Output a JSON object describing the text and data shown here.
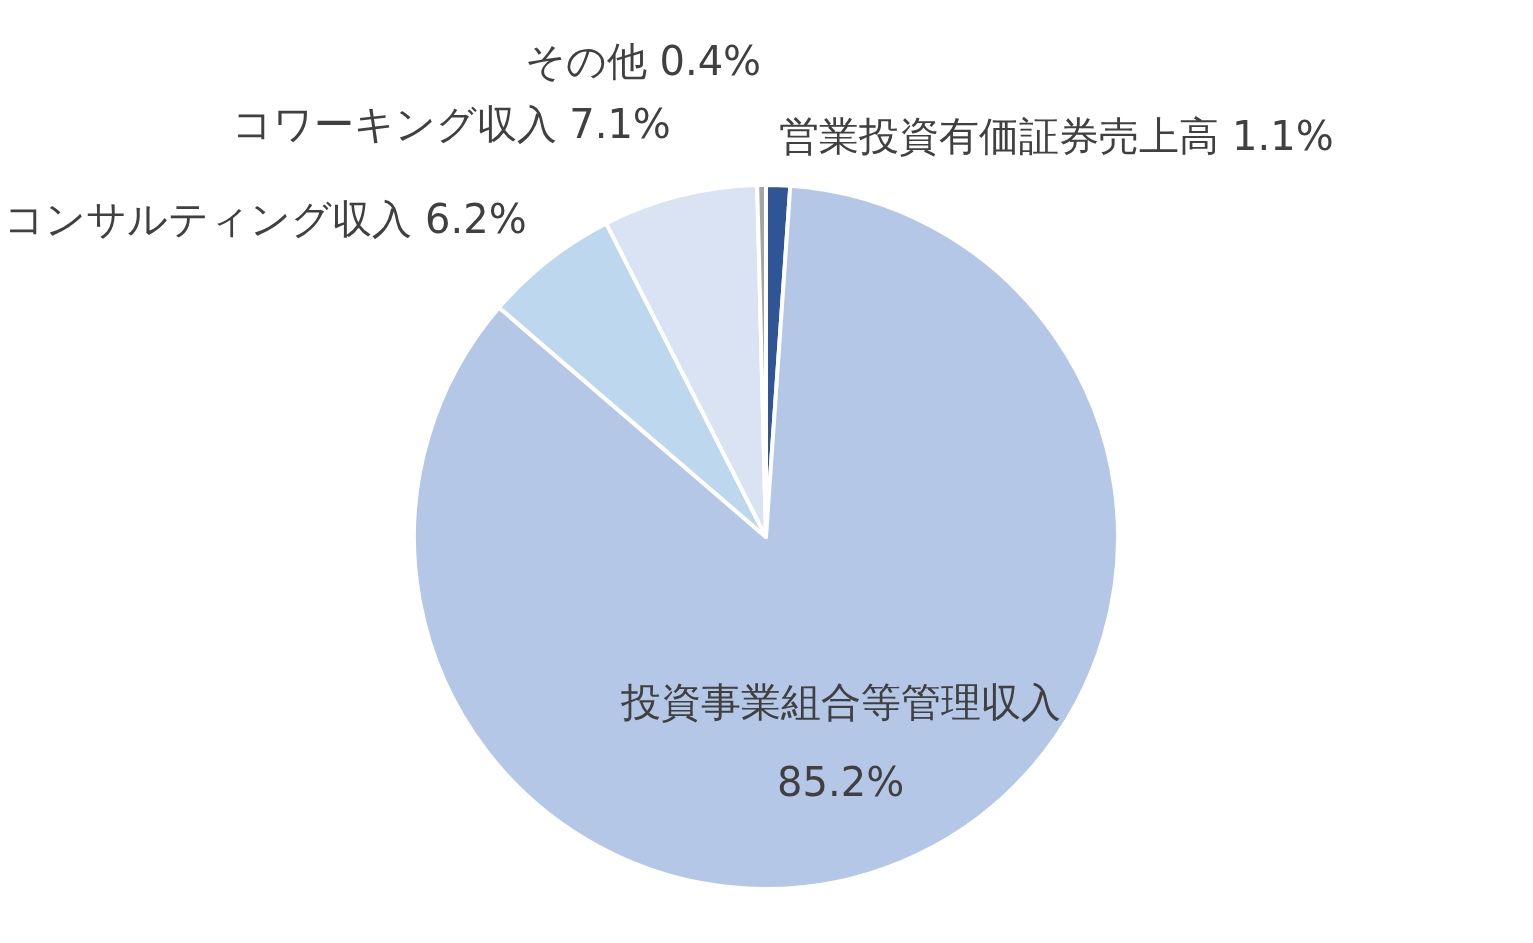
{
  "chart_data": {
    "type": "pie",
    "categories": [
      "営業投資有価証券売上高",
      "投資事業組合等管理収入",
      "コンサルティング収入",
      "コワーキング収入",
      "その他"
    ],
    "values": [
      1.1,
      85.2,
      6.2,
      7.1,
      0.4
    ],
    "value_labels": [
      "1.1%",
      "85.2%",
      "6.2%",
      "7.1%",
      "0.4%"
    ],
    "colors": [
      "#2f5597",
      "#b4c7e7",
      "#bdd7ee",
      "#dae3f3",
      "#a5a5a5"
    ]
  }
}
